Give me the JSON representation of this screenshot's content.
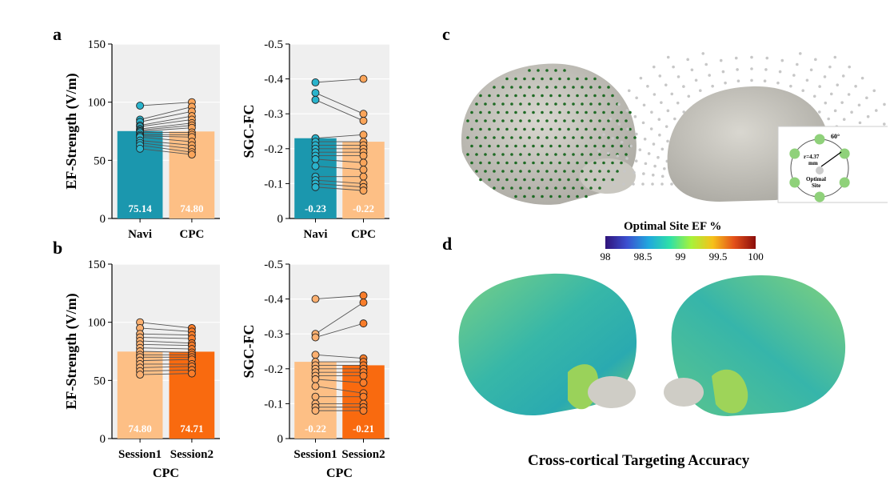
{
  "panels": {
    "a": "a",
    "b": "b",
    "c": "c",
    "d": "d"
  },
  "colors": {
    "teal": "#1b97ae",
    "peach": "#fdbf85",
    "orange": "#f96a0f",
    "grid_bg": "#efefef"
  },
  "chart_data": [
    {
      "id": "a-ef",
      "type": "bar",
      "panel": "a",
      "categories": [
        "Navi",
        "CPC"
      ],
      "values": [
        75.14,
        74.8
      ],
      "value_labels": [
        "75.14",
        "74.80"
      ],
      "bar_colors": [
        "#1b97ae",
        "#fdbf85"
      ],
      "ylabel": "EF-Strength (V/m)",
      "xlabel": "",
      "ylim": [
        0,
        150
      ],
      "yticks": [
        0,
        50,
        100,
        150
      ],
      "inverted": false,
      "points": [
        [
          97,
          85,
          83,
          80,
          79,
          77,
          76,
          75,
          74,
          72,
          71,
          70,
          67,
          65,
          63,
          60
        ],
        [
          100,
          96,
          92,
          88,
          85,
          82,
          80,
          78,
          74,
          72,
          70,
          66,
          63,
          60,
          57,
          55
        ]
      ]
    },
    {
      "id": "a-sgc",
      "type": "bar",
      "panel": "a",
      "categories": [
        "Navi",
        "CPC"
      ],
      "values": [
        -0.23,
        -0.22
      ],
      "value_labels": [
        "-0.23",
        "-0.22"
      ],
      "bar_colors": [
        "#1b97ae",
        "#fdbf85"
      ],
      "ylabel": "SGC-FC",
      "xlabel": "",
      "ylim": [
        0,
        -0.5
      ],
      "yticks": [
        0,
        -0.1,
        -0.2,
        -0.3,
        -0.4,
        -0.5
      ],
      "inverted": true,
      "points": [
        [
          -0.39,
          -0.36,
          -0.34,
          -0.23,
          -0.22,
          -0.21,
          -0.2,
          -0.19,
          -0.18,
          -0.17,
          -0.15,
          -0.12,
          -0.11,
          -0.1,
          -0.09
        ],
        [
          -0.4,
          -0.3,
          -0.28,
          -0.24,
          -0.22,
          -0.21,
          -0.2,
          -0.19,
          -0.18,
          -0.16,
          -0.14,
          -0.12,
          -0.1,
          -0.09,
          -0.08
        ]
      ]
    },
    {
      "id": "b-ef",
      "type": "bar",
      "panel": "b",
      "categories": [
        "Session1",
        "Session2"
      ],
      "values": [
        74.8,
        74.71
      ],
      "value_labels": [
        "74.80",
        "74.71"
      ],
      "bar_colors": [
        "#fdbf85",
        "#f96a0f"
      ],
      "ylabel": "EF-Strength (V/m)",
      "xlabel": "CPC",
      "ylim": [
        0,
        150
      ],
      "yticks": [
        0,
        50,
        100,
        150
      ],
      "inverted": false,
      "points": [
        [
          100,
          95,
          90,
          87,
          84,
          81,
          78,
          75,
          72,
          70,
          67,
          64,
          61,
          58,
          55
        ],
        [
          95,
          92,
          89,
          86,
          82,
          80,
          77,
          74,
          72,
          70,
          68,
          64,
          62,
          59,
          56
        ]
      ]
    },
    {
      "id": "b-sgc",
      "type": "bar",
      "panel": "b",
      "categories": [
        "Session1",
        "Session2"
      ],
      "values": [
        -0.22,
        -0.21
      ],
      "value_labels": [
        "-0.22",
        "-0.21"
      ],
      "bar_colors": [
        "#fdbf85",
        "#f96a0f"
      ],
      "ylabel": "SGC-FC",
      "xlabel": "CPC",
      "ylim": [
        0,
        -0.5
      ],
      "yticks": [
        0,
        -0.1,
        -0.2,
        -0.3,
        -0.4,
        -0.5
      ],
      "inverted": true,
      "points": [
        [
          -0.4,
          -0.3,
          -0.29,
          -0.24,
          -0.22,
          -0.21,
          -0.2,
          -0.19,
          -0.18,
          -0.17,
          -0.15,
          -0.12,
          -0.1,
          -0.09,
          -0.08
        ],
        [
          -0.41,
          -0.39,
          -0.33,
          -0.23,
          -0.22,
          -0.21,
          -0.2,
          -0.19,
          -0.18,
          -0.16,
          -0.13,
          -0.12,
          -0.1,
          -0.09,
          -0.08
        ]
      ]
    }
  ],
  "inset": {
    "angle": "60°",
    "radius": "r=4.37",
    "unit": "mm",
    "site_line1": "Optimal",
    "site_line2": "Site"
  },
  "colorbar": {
    "title": "Optimal Site EF %",
    "ticks": [
      "98",
      "98.5",
      "99",
      "99.5",
      "100"
    ],
    "stops": [
      "#30137a",
      "#3b4fd0",
      "#21a7de",
      "#2ee0a8",
      "#a7f23a",
      "#f6c11a",
      "#e3501a",
      "#8a0d0b"
    ]
  },
  "caption": "Cross-cortical Targeting Accuracy"
}
